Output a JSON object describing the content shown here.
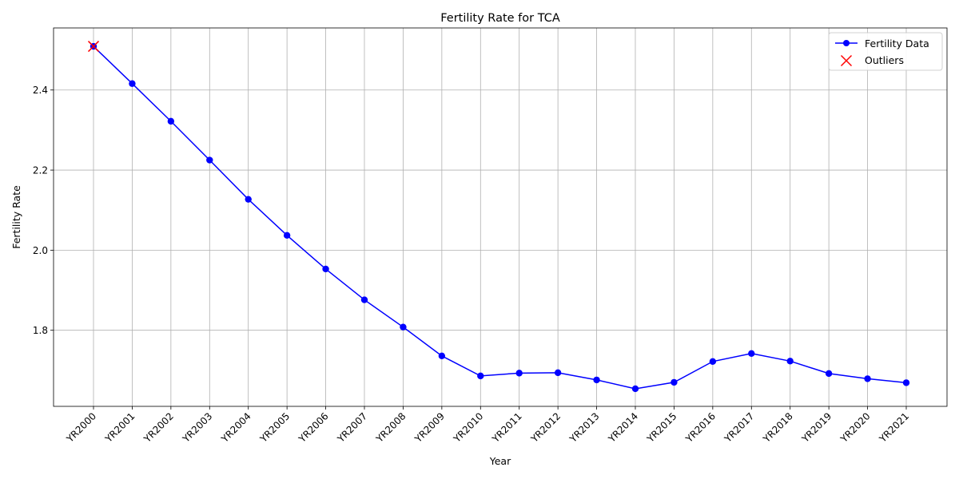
{
  "chart_data": {
    "type": "line",
    "title": "Fertility Rate for TCA",
    "xlabel": "Year",
    "ylabel": "Fertility Rate",
    "categories": [
      "YR2000",
      "YR2001",
      "YR2002",
      "YR2003",
      "YR2004",
      "YR2005",
      "YR2006",
      "YR2007",
      "YR2008",
      "YR2009",
      "YR2010",
      "YR2011",
      "YR2012",
      "YR2013",
      "YR2014",
      "YR2015",
      "YR2016",
      "YR2017",
      "YR2018",
      "YR2019",
      "YR2020",
      "YR2021"
    ],
    "ylim": [
      1.61,
      2.555
    ],
    "yticks": [
      1.8,
      2.0,
      2.2,
      2.4
    ],
    "ytick_labels": [
      "1.8",
      "2.0",
      "2.2",
      "2.4"
    ],
    "grid": true,
    "legend_position": "top-right",
    "series": [
      {
        "name": "Fertility Data",
        "color": "#0000ff",
        "marker": "circle",
        "values": [
          2.509,
          2.416,
          2.322,
          2.225,
          2.127,
          2.037,
          1.953,
          1.876,
          1.808,
          1.736,
          1.686,
          1.693,
          1.694,
          1.676,
          1.654,
          1.67,
          1.722,
          1.742,
          1.723,
          1.692,
          1.679,
          1.669
        ]
      },
      {
        "name": "Outliers",
        "color": "#ff0000",
        "marker": "x",
        "points": [
          {
            "x": "YR2000",
            "y": 2.509
          }
        ]
      }
    ]
  }
}
